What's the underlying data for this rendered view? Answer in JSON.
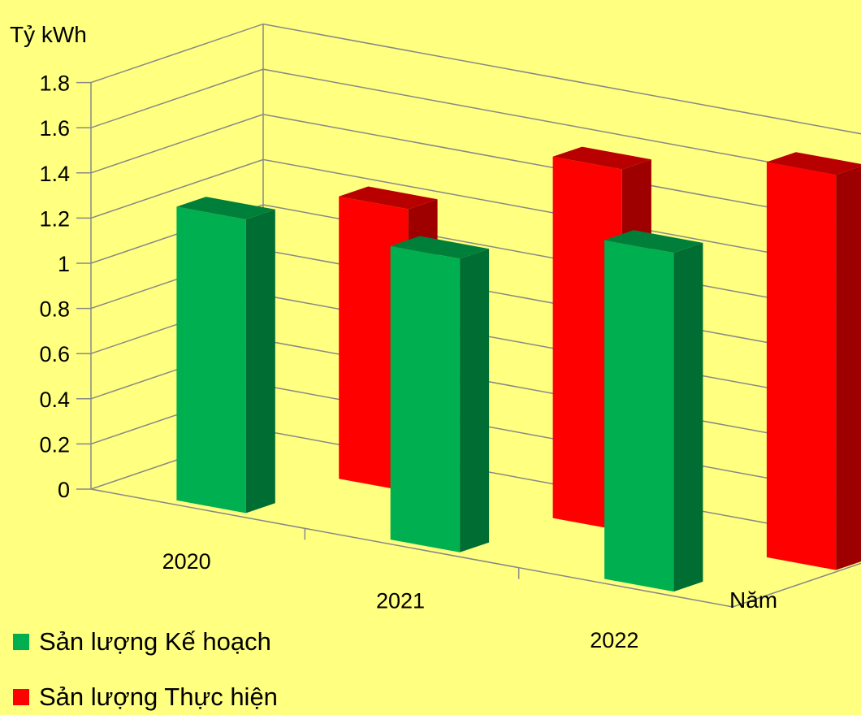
{
  "chart_data": {
    "type": "bar",
    "ylabel": "Tỷ kWh",
    "xlabel": "Năm",
    "categories": [
      "2020",
      "2021",
      "2022"
    ],
    "ylim": [
      0,
      1.8
    ],
    "yticks": [
      "0",
      "0.2",
      "0.4",
      "0.6",
      "0.8",
      "1",
      "1.2",
      "1.4",
      "1.6",
      "1.8"
    ],
    "grid": true,
    "legend_position": "bottom-left",
    "series": [
      {
        "name": "Sản lượng Kế hoạch",
        "values": [
          1.3,
          1.3,
          1.5
        ],
        "color": "#00b050"
      },
      {
        "name": "Sản lượng Thực hiện",
        "values": [
          1.25,
          1.6,
          1.75
        ],
        "color": "#ff0000"
      }
    ]
  }
}
